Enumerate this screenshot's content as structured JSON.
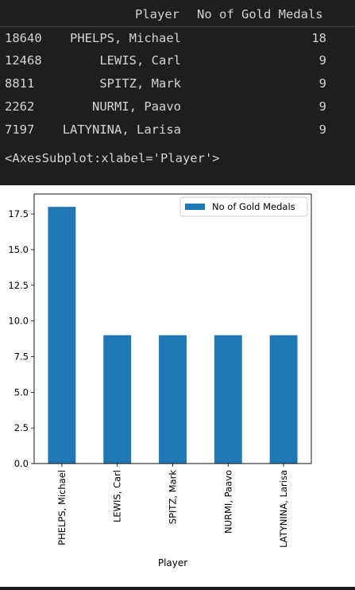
{
  "dataframe": {
    "index_header": "",
    "columns": [
      "Player",
      "No of Gold Medals"
    ],
    "rows": [
      {
        "index": "18640",
        "player": "PHELPS, Michael",
        "value": "18"
      },
      {
        "index": "12468",
        "player": "LEWIS, Carl",
        "value": "9"
      },
      {
        "index": "8811",
        "player": "SPITZ, Mark",
        "value": "9"
      },
      {
        "index": "2262",
        "player": "NURMI, Paavo",
        "value": "9"
      },
      {
        "index": "7197",
        "player": "LATYNINA, Larisa",
        "value": "9"
      }
    ]
  },
  "repr_text": "<AxesSubplot:xlabel='Player'>",
  "chart_data": {
    "type": "bar",
    "categories": [
      "PHELPS, Michael",
      "LEWIS, Carl",
      "SPITZ, Mark",
      "NURMI, Paavo",
      "LATYNINA, Larisa"
    ],
    "series": [
      {
        "name": "No of Gold Medals",
        "values": [
          18,
          9,
          9,
          9,
          9
        ],
        "color": "#1f77b4"
      }
    ],
    "xlabel": "Player",
    "ylabel": "",
    "ylim": [
      0,
      18.9
    ],
    "yticks": [
      "0.0",
      "2.5",
      "5.0",
      "7.5",
      "10.0",
      "12.5",
      "15.0",
      "17.5"
    ],
    "ytick_values": [
      0,
      2.5,
      5,
      7.5,
      10,
      12.5,
      15,
      17.5
    ],
    "legend": "top-right",
    "grid": false
  },
  "colors": {
    "bar": "#1f77b4",
    "output_bg": "#1e1e1e",
    "plot_bg": "#ffffff"
  }
}
